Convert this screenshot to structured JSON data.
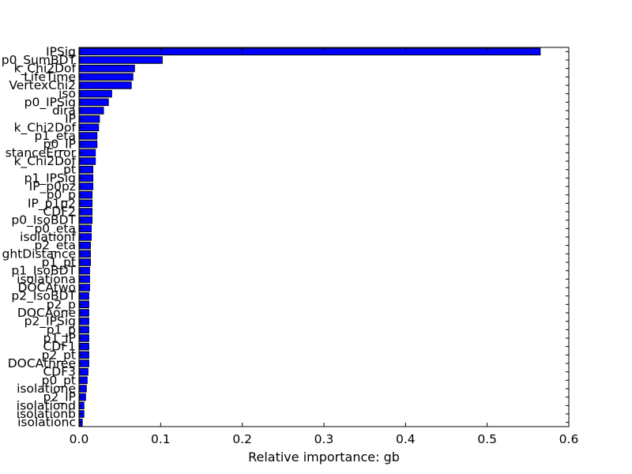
{
  "chart_data": {
    "type": "bar",
    "orientation": "horizontal",
    "title": "",
    "xlabel": "Relative importance: gb",
    "ylabel": "",
    "xlim": [
      0.0,
      0.6
    ],
    "xticks": [
      "0.0",
      "0.1",
      "0.2",
      "0.3",
      "0.4",
      "0.5",
      "0.6"
    ],
    "grid": false,
    "bar_color": "#0000ff",
    "edge_color": "#000000",
    "categories": [
      "IPSig",
      "p0_SumBDT",
      "k_Chi2Dof",
      "LifeTime",
      "VertexChi2",
      "iso",
      "p0_IPSig",
      "dira",
      "IP",
      "k_Chi2Dof",
      "p1_eta",
      "p0_IP",
      "stanceError",
      "k_Chi2Dof",
      "pt",
      "p1_IPSig",
      "IP_p0pz",
      "p0_p",
      "IP_p1p2",
      "CDF2",
      "p0_IsoBDT",
      "p0_eta",
      "isolationf",
      "p2_eta",
      "ghtDistance",
      "p1_pt",
      "p1_IsoBDT",
      "isolationa",
      "DOCAtwo",
      "p2_IsoBDT",
      "p2_p",
      "DOCAone",
      "p2_IPSig",
      "p1_p",
      "p1_IP",
      "CDF1",
      "p2_pt",
      "DOCAthree",
      "CDF3",
      "p0_pt",
      "isolatione",
      "p2_IP",
      "isolationd",
      "isolationb",
      "isolationc"
    ],
    "values": [
      0.565,
      0.102,
      0.068,
      0.066,
      0.064,
      0.04,
      0.036,
      0.03,
      0.025,
      0.024,
      0.022,
      0.022,
      0.02,
      0.02,
      0.017,
      0.017,
      0.017,
      0.016,
      0.016,
      0.016,
      0.016,
      0.015,
      0.015,
      0.014,
      0.014,
      0.014,
      0.013,
      0.013,
      0.013,
      0.012,
      0.012,
      0.012,
      0.012,
      0.012,
      0.012,
      0.012,
      0.012,
      0.012,
      0.011,
      0.01,
      0.009,
      0.008,
      0.006,
      0.006,
      0.004
    ]
  }
}
